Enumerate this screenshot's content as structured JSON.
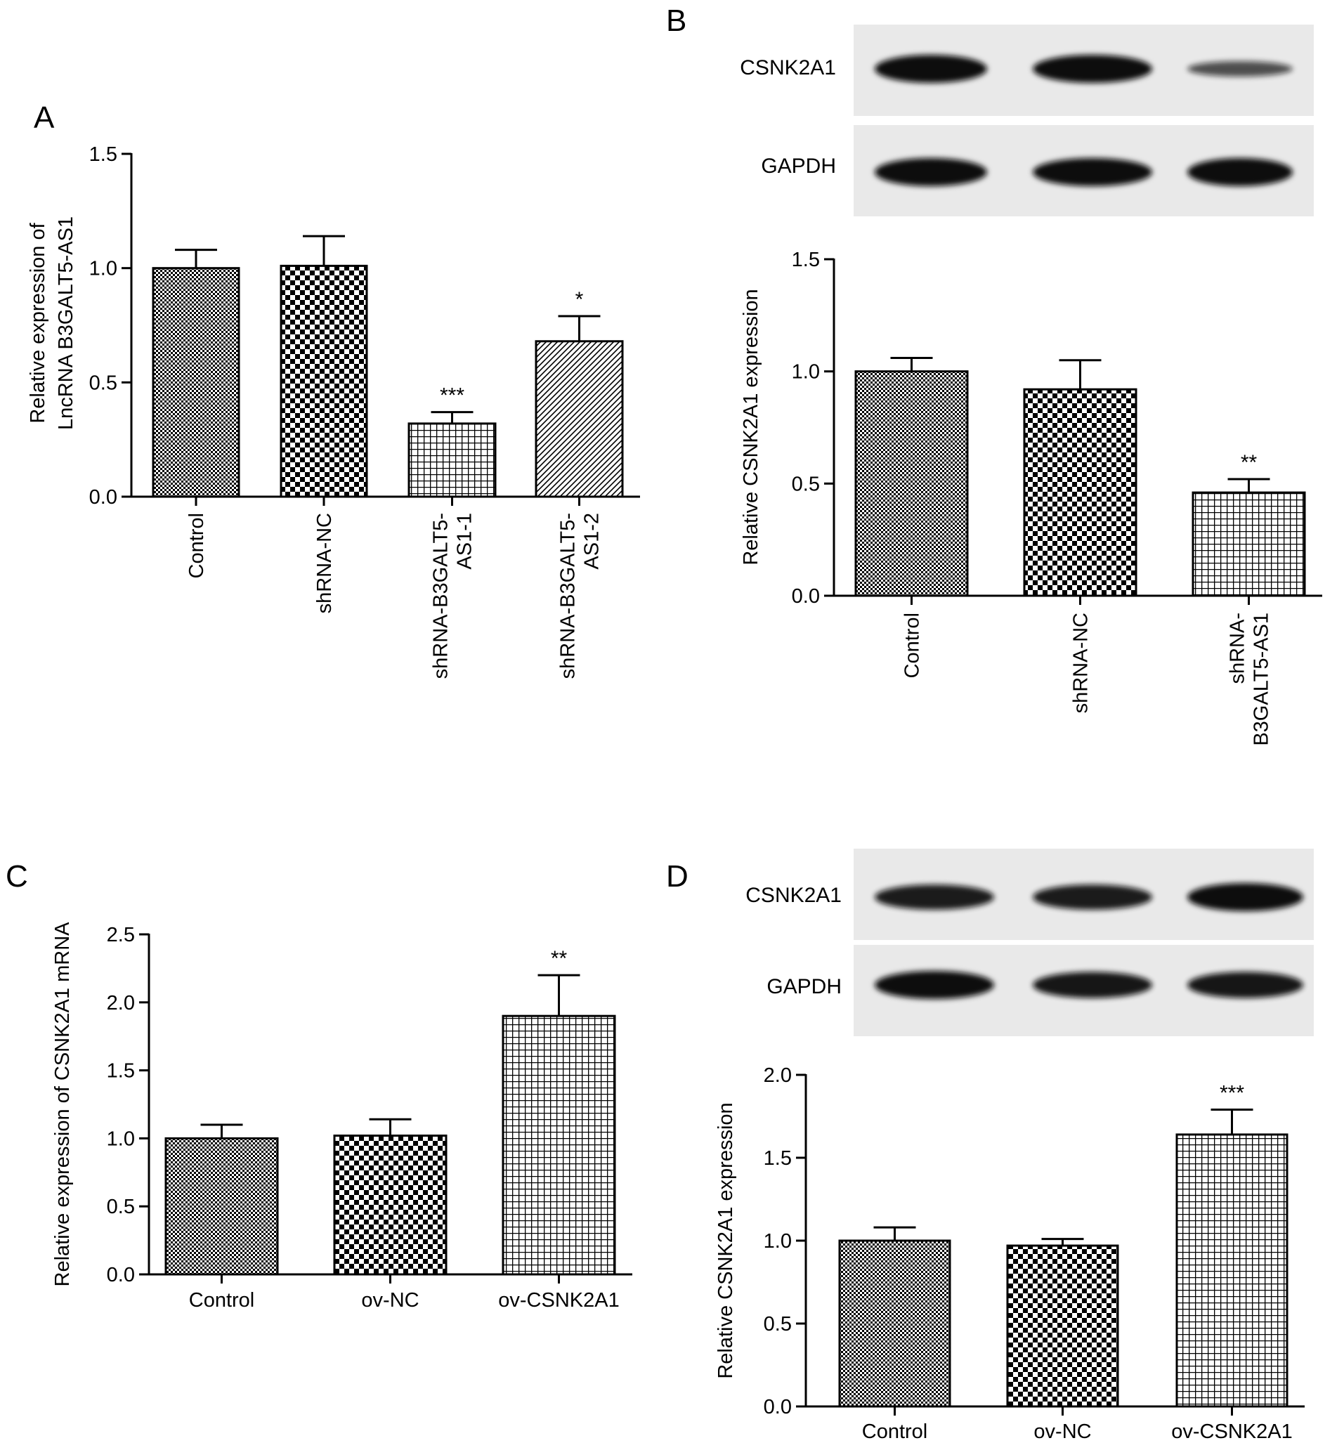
{
  "chart_data": [
    {
      "panel": "A",
      "type": "bar",
      "ylabel": [
        "Relative expression of",
        "LncRNA B3GALT5-AS1"
      ],
      "ylim": [
        0,
        1.5
      ],
      "yticks": [
        "0.0",
        "0.5",
        "1.0",
        "1.5"
      ],
      "categories": [
        [
          "Control"
        ],
        [
          "shRNA-NC"
        ],
        [
          "shRNA-B3GALT5-",
          "AS1-1"
        ],
        [
          "shRNA-B3GALT5-",
          "AS1-2"
        ]
      ],
      "values": [
        1.0,
        1.01,
        0.32,
        0.68
      ],
      "errors": [
        0.08,
        0.13,
        0.05,
        0.11
      ],
      "significance": [
        "",
        "",
        "***",
        "*"
      ],
      "patterns": [
        "fine-check",
        "check",
        "grid",
        "diag"
      ]
    },
    {
      "panel": "B",
      "type": "bar",
      "ylabel": [
        "Relative CSNK2A1 expression"
      ],
      "ylim": [
        0,
        1.5
      ],
      "yticks": [
        "0.0",
        "0.5",
        "1.0",
        "1.5"
      ],
      "categories": [
        [
          "Control"
        ],
        [
          "shRNA-NC"
        ],
        [
          "shRNA-",
          "B3GALT5-AS1"
        ]
      ],
      "values": [
        1.0,
        0.92,
        0.46
      ],
      "errors": [
        0.06,
        0.13,
        0.06
      ],
      "significance": [
        "",
        "",
        "**"
      ],
      "patterns": [
        "fine-check",
        "check",
        "grid"
      ],
      "blot_labels": [
        "CSNK2A1",
        "GAPDH"
      ]
    },
    {
      "panel": "C",
      "type": "bar",
      "ylabel": [
        "Relative expression of CSNK2A1 mRNA"
      ],
      "ylim": [
        0,
        2.5
      ],
      "yticks": [
        "0.0",
        "0.5",
        "1.0",
        "1.5",
        "2.0",
        "2.5"
      ],
      "categories": [
        [
          "Control"
        ],
        [
          "ov-NC"
        ],
        [
          "ov-CSNK2A1"
        ]
      ],
      "values": [
        1.0,
        1.02,
        1.9
      ],
      "errors": [
        0.1,
        0.12,
        0.3
      ],
      "significance": [
        "",
        "",
        "**"
      ],
      "patterns": [
        "fine-check",
        "check",
        "grid"
      ]
    },
    {
      "panel": "D",
      "type": "bar",
      "ylabel": [
        "Relative CSNK2A1 expression"
      ],
      "ylim": [
        0,
        2.0
      ],
      "yticks": [
        "0.0",
        "0.5",
        "1.0",
        "1.5",
        "2.0"
      ],
      "categories": [
        [
          "Control"
        ],
        [
          "ov-NC"
        ],
        [
          "ov-CSNK2A1"
        ]
      ],
      "values": [
        1.0,
        0.97,
        1.64
      ],
      "errors": [
        0.08,
        0.04,
        0.15
      ],
      "significance": [
        "",
        "",
        "***"
      ],
      "patterns": [
        "fine-check",
        "check",
        "grid"
      ],
      "blot_labels": [
        "CSNK2A1",
        "GAPDH"
      ]
    }
  ],
  "blots": {
    "B": {
      "CSNK2A1": [
        1.0,
        1.0,
        0.35
      ],
      "GAPDH": [
        1.0,
        1.0,
        1.0
      ]
    },
    "D": {
      "CSNK2A1": [
        0.85,
        0.85,
        1.0
      ],
      "GAPDH": [
        1.0,
        0.9,
        0.9
      ]
    }
  }
}
